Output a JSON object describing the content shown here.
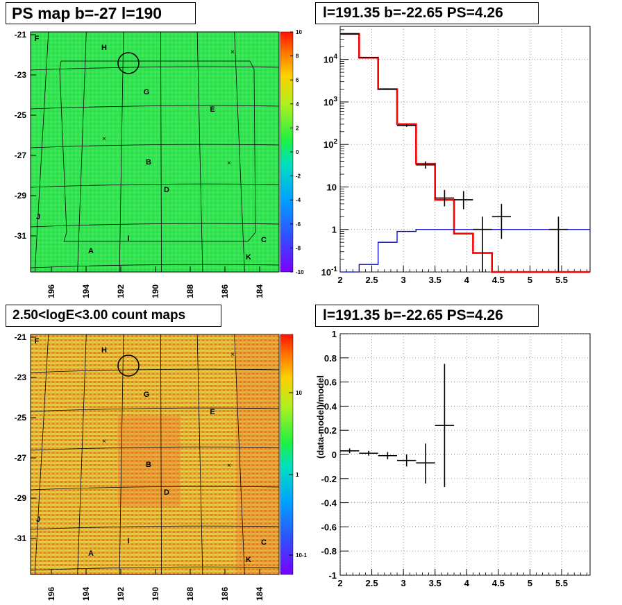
{
  "panels": {
    "ps_map_title": "PS map b=-27 l=190",
    "top_right_title": "l=191.35 b=-22.65 PS=4.26",
    "count_map_title": "2.50<logE<3.00 count maps",
    "bottom_right_title": "l=191.35 b=-22.65 PS=4.26"
  },
  "sky_maps": {
    "lon_ticks": [
      "196",
      "194",
      "192",
      "190",
      "188",
      "186",
      "184"
    ],
    "lat_ticks": [
      "-21",
      "-23",
      "-25",
      "-27",
      "-29",
      "-31"
    ],
    "source_labels": [
      "F",
      "H",
      "G",
      "E",
      "B",
      "D",
      "J",
      "I",
      "A",
      "C",
      "K"
    ],
    "ps_colorbar_ticks": [
      "10",
      "8",
      "6",
      "4",
      "2",
      "0",
      "-2",
      "-4",
      "-6",
      "-8",
      "-10"
    ],
    "count_colorbar_ticks": [
      "10",
      "1",
      "10-1"
    ],
    "colors": {
      "ps_background": "#2ee84e",
      "count_background": "#f0a030"
    }
  },
  "chart_data": [
    {
      "type": "line",
      "panel": "top_right",
      "title": "l=191.35 b=-22.65 PS=4.26",
      "xlabel": "",
      "ylabel": "",
      "xlim": [
        2,
        5.95
      ],
      "ylim": [
        0.1,
        60000
      ],
      "yscale": "log",
      "grid": true,
      "x_ticks": [
        "2",
        "2.5",
        "3",
        "3.5",
        "4",
        "4.5",
        "5",
        "5.5"
      ],
      "y_ticks": [
        "10^-1",
        "1",
        "10",
        "10^2",
        "10^3",
        "10^4"
      ],
      "series": [
        {
          "color": "#ff0000",
          "style": "step",
          "edges": [
            2.0,
            2.3,
            2.6,
            2.9,
            3.2,
            3.5,
            3.8,
            4.1,
            4.4,
            5.95
          ],
          "values": [
            40000,
            11000,
            2000,
            300,
            35,
            5,
            0.8,
            0.28,
            0.1
          ]
        },
        {
          "color": "#0000cc",
          "style": "step",
          "edges": [
            2.0,
            2.3,
            2.6,
            2.9,
            3.2,
            3.5,
            5.95
          ],
          "values": [
            0.03,
            0.15,
            0.5,
            0.9,
            1.0,
            1.0
          ]
        },
        {
          "color": "#000000",
          "style": "errorbar",
          "points": [
            {
              "x": 2.15,
              "y": 40000,
              "lo": 39500,
              "hi": 40500
            },
            {
              "x": 2.45,
              "y": 11000,
              "lo": 10800,
              "hi": 11200
            },
            {
              "x": 2.75,
              "y": 2000,
              "lo": 1950,
              "hi": 2050
            },
            {
              "x": 3.05,
              "y": 280,
              "lo": 260,
              "hi": 300
            },
            {
              "x": 3.35,
              "y": 33,
              "lo": 27,
              "hi": 40
            },
            {
              "x": 3.65,
              "y": 5.5,
              "lo": 3.5,
              "hi": 8.5
            },
            {
              "x": 3.95,
              "y": 5,
              "lo": 3,
              "hi": 8
            },
            {
              "x": 4.25,
              "y": 1,
              "lo": 0.1,
              "hi": 2
            },
            {
              "x": 4.55,
              "y": 2,
              "lo": 0.6,
              "hi": 4
            },
            {
              "x": 5.45,
              "y": 1,
              "lo": 0.1,
              "hi": 2
            }
          ]
        }
      ]
    },
    {
      "type": "scatter",
      "panel": "bottom_right",
      "title": "l=191.35 b=-22.65 PS=4.26",
      "xlabel": "",
      "ylabel": "(data-model)/model",
      "xlim": [
        2,
        5.95
      ],
      "ylim": [
        -1,
        1
      ],
      "grid": true,
      "x_ticks": [
        "2",
        "2.5",
        "3",
        "3.5",
        "4",
        "4.5",
        "5",
        "5.5"
      ],
      "y_ticks": [
        "1",
        "0.8",
        "0.6",
        "0.4",
        "0.2",
        "0",
        "-0.2",
        "-0.4",
        "-0.6",
        "-0.8",
        "-1"
      ],
      "series": [
        {
          "color": "#000000",
          "style": "errorbar",
          "points": [
            {
              "x": 2.15,
              "y": 0.03,
              "lo": 0.01,
              "hi": 0.05
            },
            {
              "x": 2.45,
              "y": 0.01,
              "lo": -0.01,
              "hi": 0.03
            },
            {
              "x": 2.75,
              "y": -0.01,
              "lo": -0.04,
              "hi": 0.02
            },
            {
              "x": 3.05,
              "y": -0.05,
              "lo": -0.1,
              "hi": 0.0
            },
            {
              "x": 3.35,
              "y": -0.07,
              "lo": -0.24,
              "hi": 0.09
            },
            {
              "x": 3.65,
              "y": 0.24,
              "lo": -0.27,
              "hi": 0.75
            }
          ]
        }
      ]
    }
  ]
}
